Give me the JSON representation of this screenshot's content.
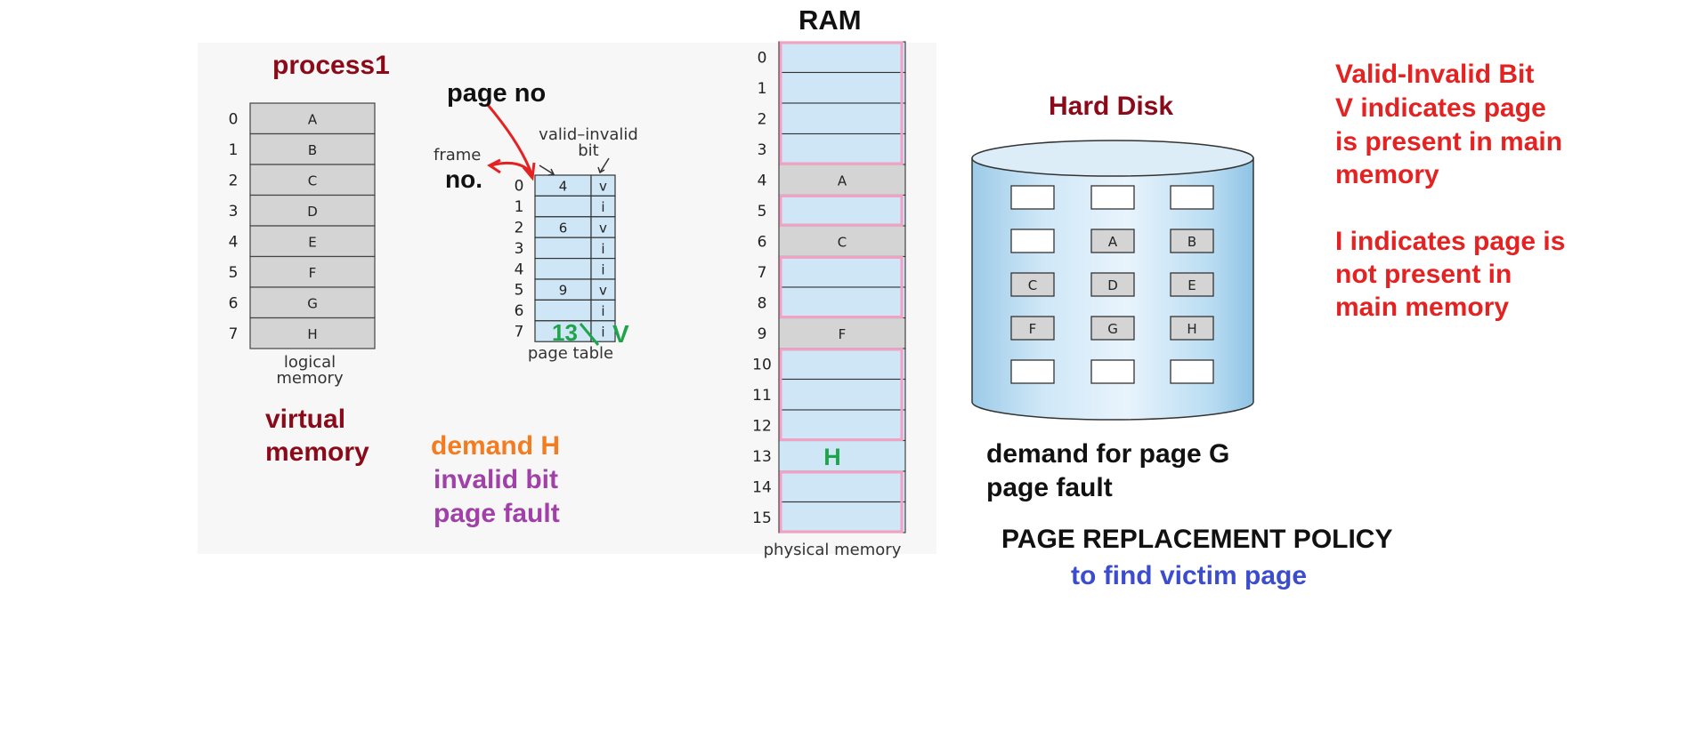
{
  "logical_memory": {
    "title": "process1",
    "indices": [
      "0",
      "1",
      "2",
      "3",
      "4",
      "5",
      "6",
      "7"
    ],
    "pages": [
      "A",
      "B",
      "C",
      "D",
      "E",
      "F",
      "G",
      "H"
    ],
    "caption_line1": "logical",
    "caption_line2": "memory",
    "note_line1": "virtual",
    "note_line2": "memory"
  },
  "page_table": {
    "page_no_label": "page no",
    "frame_label": "frame",
    "frame_no_label": "no.",
    "bit_label_line1": "valid–invalid",
    "bit_label_line2": "bit",
    "rows": [
      {
        "index": "0",
        "frame": "4",
        "bit": "v"
      },
      {
        "index": "1",
        "frame": "",
        "bit": "i"
      },
      {
        "index": "2",
        "frame": "6",
        "bit": "v"
      },
      {
        "index": "3",
        "frame": "",
        "bit": "i"
      },
      {
        "index": "4",
        "frame": "",
        "bit": "i"
      },
      {
        "index": "5",
        "frame": "9",
        "bit": "v"
      },
      {
        "index": "6",
        "frame": "",
        "bit": "i"
      },
      {
        "index": "7",
        "frame": "",
        "bit": "i"
      }
    ],
    "annotation_frame": "13",
    "annotation_bit": "V",
    "caption": "page table",
    "demand_note": "demand H",
    "invalid_note": "invalid bit",
    "fault_note": "page fault"
  },
  "ram": {
    "title": "RAM",
    "indices": [
      "0",
      "1",
      "2",
      "3",
      "4",
      "5",
      "6",
      "7",
      "8",
      "9",
      "10",
      "11",
      "12",
      "13",
      "14",
      "15"
    ],
    "frames": [
      "",
      "",
      "",
      "",
      "A",
      "",
      "C",
      "",
      "",
      "F",
      "",
      "",
      "",
      "H",
      "",
      ""
    ],
    "caption": "physical memory"
  },
  "disk": {
    "title": "Hard Disk",
    "slots": [
      "",
      "",
      "",
      "",
      "A",
      "B",
      "C",
      "D",
      "E",
      "F",
      "G",
      "H",
      "",
      "",
      ""
    ],
    "note_line1": "demand for page G",
    "note_line2": "page fault",
    "policy_title": "PAGE REPLACEMENT POLICY",
    "policy_sub": "to find victim page"
  },
  "legend": {
    "line1": "Valid-Invalid Bit",
    "line2": "V  indicates page",
    "line3": "is present in main",
    "line4": "memory",
    "line5": "I indicates page is",
    "line6": "not present in",
    "line7": "main memory"
  },
  "colors": {
    "maroon": "#8b0a1a",
    "red": "#e52222",
    "orange": "#f47c20",
    "purple": "#a040a8",
    "blue": "#3b4ccf",
    "green": "#1ea54a",
    "pink": "#f2a1c2",
    "cell_blue": "#cfe6f7",
    "cell_gray": "#d4d4d4"
  }
}
